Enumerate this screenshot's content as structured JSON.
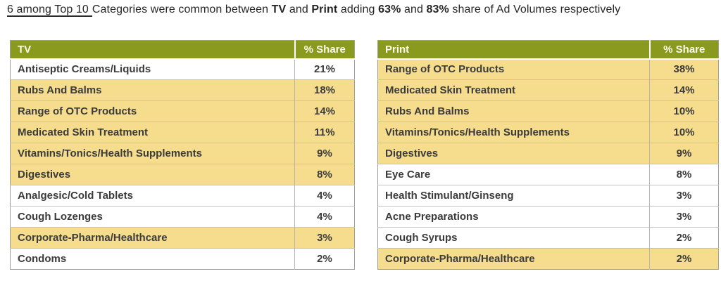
{
  "title": {
    "parts": [
      {
        "text": "6 among Top 10",
        "bold": false,
        "underline": true
      },
      {
        "text": "Categories were common between ",
        "bold": false,
        "underline": false
      },
      {
        "text": "TV",
        "bold": true,
        "underline": false
      },
      {
        "text": " and ",
        "bold": false,
        "underline": false
      },
      {
        "text": "Print",
        "bold": true,
        "underline": false
      },
      {
        "text": " adding ",
        "bold": false,
        "underline": false
      },
      {
        "text": "63%",
        "bold": true,
        "underline": false
      },
      {
        "text": " and ",
        "bold": false,
        "underline": false
      },
      {
        "text": "83%",
        "bold": true,
        "underline": false
      },
      {
        "text": " share of Ad Volumes respectively",
        "bold": false,
        "underline": false
      }
    ]
  },
  "colors": {
    "header_olive": "#8a9a1e",
    "header_text": "#fbfbe9",
    "highlight_tan": "#f6dd8d",
    "row_text": "#3b3b3b"
  },
  "tables": [
    {
      "header_label": "TV",
      "share_label": "% Share",
      "rows": [
        {
          "category": "Antiseptic Creams/Liquids",
          "share": "21%",
          "highlighted": false
        },
        {
          "category": "Rubs And Balms",
          "share": "18%",
          "highlighted": true
        },
        {
          "category": "Range of OTC Products",
          "share": "14%",
          "highlighted": true
        },
        {
          "category": "Medicated Skin Treatment",
          "share": "11%",
          "highlighted": true
        },
        {
          "category": "Vitamins/Tonics/Health Supplements",
          "share": "9%",
          "highlighted": true
        },
        {
          "category": "Digestives",
          "share": "8%",
          "highlighted": true
        },
        {
          "category": "Analgesic/Cold Tablets",
          "share": "4%",
          "highlighted": false
        },
        {
          "category": "Cough Lozenges",
          "share": "4%",
          "highlighted": false
        },
        {
          "category": "Corporate-Pharma/Healthcare",
          "share": "3%",
          "highlighted": true
        },
        {
          "category": "Condoms",
          "share": "2%",
          "highlighted": false
        }
      ]
    },
    {
      "header_label": "Print",
      "share_label": "% Share",
      "rows": [
        {
          "category": "Range of OTC Products",
          "share": "38%",
          "highlighted": true
        },
        {
          "category": "Medicated Skin Treatment",
          "share": "14%",
          "highlighted": true
        },
        {
          "category": "Rubs And Balms",
          "share": "10%",
          "highlighted": true
        },
        {
          "category": "Vitamins/Tonics/Health Supplements",
          "share": "10%",
          "highlighted": true
        },
        {
          "category": "Digestives",
          "share": "9%",
          "highlighted": true
        },
        {
          "category": "Eye Care",
          "share": "8%",
          "highlighted": false
        },
        {
          "category": "Health Stimulant/Ginseng",
          "share": "3%",
          "highlighted": false
        },
        {
          "category": "Acne Preparations",
          "share": "3%",
          "highlighted": false
        },
        {
          "category": "Cough Syrups",
          "share": "2%",
          "highlighted": false
        },
        {
          "category": "Corporate-Pharma/Healthcare",
          "share": "2%",
          "highlighted": true
        }
      ]
    }
  ]
}
